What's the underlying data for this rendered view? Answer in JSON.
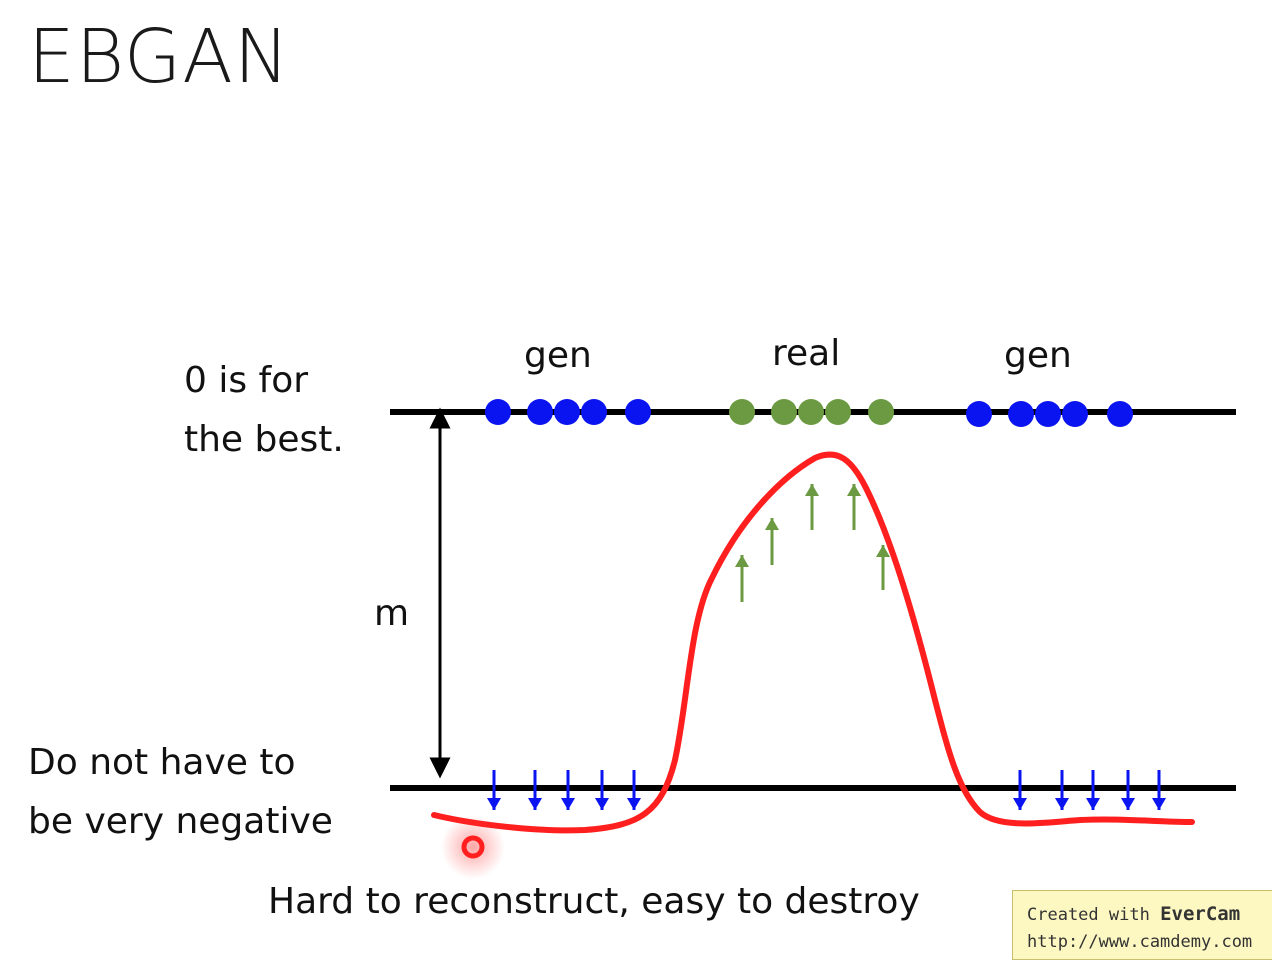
{
  "title": "EBGAN",
  "labels": {
    "gen_left": "gen",
    "real": "real",
    "gen_right": "gen",
    "best_line1": "0 is for",
    "best_line2": "the best.",
    "margin": "m",
    "neg_line1": "Do not have to",
    "neg_line2": "be very negative",
    "caption": "Hard to reconstruct, easy to destroy"
  },
  "watermark": {
    "prefix": "Created with ",
    "brand": "EverCam",
    "url": "http://www.camdemy.com"
  },
  "colors": {
    "gen_points": "#0a14f0",
    "real_points": "#6b9a42",
    "energy_curve": "#ff1f1f",
    "push_up_arrows": "#6b9a42",
    "push_down_arrows": "#0a14f0",
    "lines": "#000000"
  },
  "icons": {
    "marker": "circle-marker-icon"
  }
}
